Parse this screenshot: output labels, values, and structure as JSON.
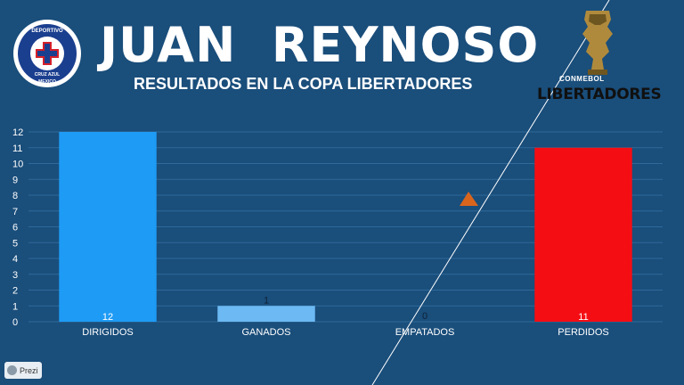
{
  "header": {
    "title": "JUAN  REYNOSO",
    "subtitle": "RESULTADOS EN LA COPA LIBERTADORES"
  },
  "crest": {
    "icon": "cruz-azul-crest-icon",
    "text_top": "DEPORTIVO",
    "text_mid": "CRUZ AZUL",
    "text_bottom": "MEXICO"
  },
  "competition_logo": {
    "icon": "copa-libertadores-trophy-icon",
    "caption": "CONMEBOL",
    "name": "LIBERTADORES"
  },
  "badge": {
    "label": "Prezi",
    "icon": "prezi-icon"
  },
  "colors": {
    "background": "#1a4e7b",
    "dirigidos": "#1e9bf5",
    "ganados": "#6cb9f3",
    "empatados": "#3e7bbf",
    "perdidos": "#f50d14",
    "gridline": "#2e6a9a",
    "marker": "#d9651d"
  },
  "chart_data": {
    "type": "bar",
    "categories": [
      "DIRIGIDOS",
      "GANADOS",
      "EMPATADOS",
      "PERDIDOS"
    ],
    "values": [
      12,
      1,
      0,
      11
    ],
    "data_labels": [
      "12",
      "1",
      "0",
      "11"
    ],
    "ylim": [
      0,
      12
    ],
    "yticks": [
      "0",
      "1",
      "2",
      "3",
      "4",
      "5",
      "6",
      "7",
      "8",
      "9",
      "10",
      "11",
      "12"
    ],
    "grid": true,
    "legend": "none",
    "xlabel": "",
    "ylabel": "",
    "title": ""
  }
}
